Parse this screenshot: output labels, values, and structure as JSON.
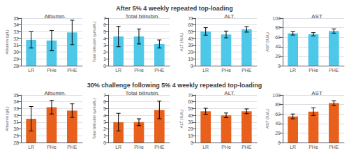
{
  "annotations": [
    "After 5% 4 weekly repeated top-loading",
    "30% challenge following 5% 4 weekly repeated top-loading"
  ],
  "chart_data": [
    {
      "type": "bar",
      "title": "Albumin.",
      "ylabel": "Albumin (g/L)",
      "categories": [
        "LR",
        "PHe",
        "PHE"
      ],
      "values": [
        31.8,
        31.7,
        32.9
      ],
      "errors": [
        1.2,
        1.5,
        1.8
      ],
      "color": "#4EC8E8",
      "ylim": [
        28,
        35
      ],
      "yticks": [
        28,
        29,
        30,
        31,
        32,
        33,
        34,
        35
      ],
      "grid": true
    },
    {
      "type": "bar",
      "title": "Total bilirubin.",
      "ylabel": "Total bilirubin (μmol/L)",
      "categories": [
        "LR",
        "PHe",
        "PHE"
      ],
      "values": [
        4.3,
        4.3,
        3.2
      ],
      "errors": [
        1.5,
        1.1,
        0.6
      ],
      "color": "#4EC8E8",
      "ylim": [
        0,
        7
      ],
      "yticks": [
        0,
        1,
        2,
        3,
        4,
        5,
        6,
        7
      ],
      "grid": true
    },
    {
      "type": "bar",
      "title": "ALT.",
      "ylabel": "ALT (IU/L)",
      "categories": [
        "LR",
        "PHe",
        "PHE"
      ],
      "values": [
        50.5,
        46.0,
        53.5
      ],
      "errors": [
        5.5,
        5.0,
        4.0
      ],
      "color": "#4EC8E8",
      "ylim": [
        0,
        70
      ],
      "yticks": [
        0,
        10,
        20,
        30,
        40,
        50,
        60,
        70
      ],
      "grid": true
    },
    {
      "type": "bar",
      "title": "AST",
      "ylabel": "AST (IU/L)",
      "categories": [
        "LR",
        "PHe",
        "PHE"
      ],
      "values": [
        68.0,
        66.0,
        73.0
      ],
      "errors": [
        3.5,
        3.5,
        4.5
      ],
      "color": "#4EC8E8",
      "ylim": [
        0,
        100
      ],
      "yticks": [
        0,
        20,
        40,
        60,
        80,
        100
      ],
      "grid": true
    },
    {
      "type": "bar",
      "title": "Albumin.",
      "ylabel": "Albumin (g/L)",
      "categories": [
        "LR",
        "PHe",
        "PHE"
      ],
      "values": [
        31.5,
        33.2,
        32.7
      ],
      "errors": [
        1.8,
        1.0,
        1.0
      ],
      "color": "#E8601C",
      "ylim": [
        28,
        35
      ],
      "yticks": [
        28,
        29,
        30,
        31,
        32,
        33,
        34,
        35
      ],
      "grid": true
    },
    {
      "type": "bar",
      "title": "Total bilirubin.",
      "ylabel": "Total bilirubin (μmol/L)",
      "categories": [
        "LR",
        "PHe",
        "PHE"
      ],
      "values": [
        3.0,
        3.0,
        4.8
      ],
      "errors": [
        1.3,
        0.5,
        1.3
      ],
      "color": "#E8601C",
      "ylim": [
        0,
        7
      ],
      "yticks": [
        0,
        1,
        2,
        3,
        4,
        5,
        6,
        7
      ],
      "grid": true
    },
    {
      "type": "bar",
      "title": "ALT.",
      "ylabel": "ALT (IU/L)",
      "categories": [
        "LR",
        "PHe",
        "PHE"
      ],
      "values": [
        46.0,
        40.0,
        46.0
      ],
      "errors": [
        4.5,
        3.5,
        3.5
      ],
      "color": "#E8601C",
      "ylim": [
        0,
        70
      ],
      "yticks": [
        0,
        10,
        20,
        30,
        40,
        50,
        60,
        70
      ],
      "grid": true
    },
    {
      "type": "bar",
      "title": "AST",
      "ylabel": "AST (IU/L)",
      "categories": [
        "LR",
        "PHe",
        "PHE"
      ],
      "values": [
        55.0,
        65.0,
        83.0
      ],
      "errors": [
        5.0,
        8.0,
        5.0
      ],
      "color": "#E8601C",
      "ylim": [
        0,
        100
      ],
      "yticks": [
        0,
        20,
        40,
        60,
        80,
        100
      ],
      "grid": true
    }
  ]
}
